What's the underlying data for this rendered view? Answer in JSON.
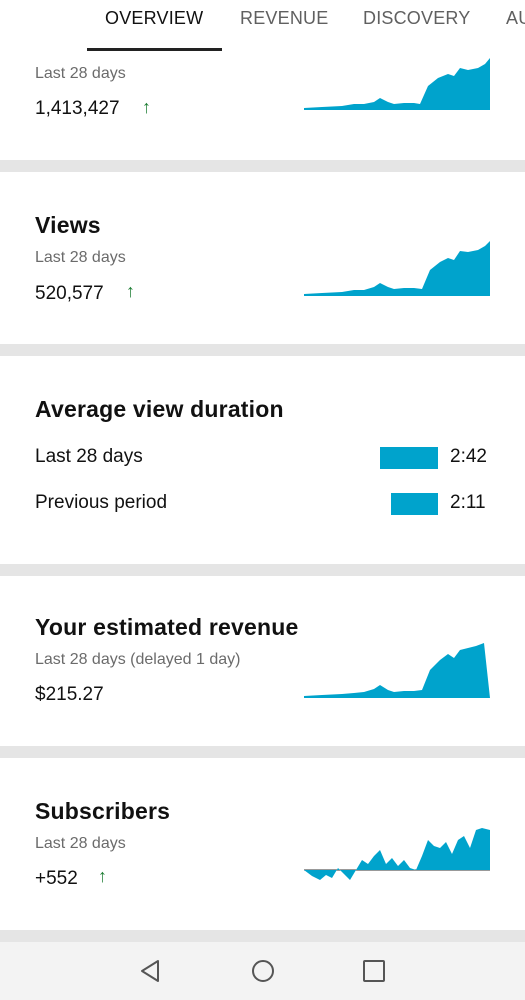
{
  "tabs": [
    {
      "label": "OVERVIEW"
    },
    {
      "label": "REVENUE"
    },
    {
      "label": "DISCOVERY"
    },
    {
      "label": "AU"
    }
  ],
  "watch_time_card": {
    "subtitle": "Last 28 days",
    "value": "1,413,427",
    "trend": "up"
  },
  "views_card": {
    "title": "Views",
    "subtitle": "Last 28 days",
    "value": "520,577",
    "trend": "up"
  },
  "avg_view_duration_card": {
    "title": "Average view duration",
    "rows": [
      {
        "label": "Last 28 days",
        "value": "2:42"
      },
      {
        "label": "Previous period",
        "value": "2:11"
      }
    ]
  },
  "revenue_card": {
    "title": "Your estimated revenue",
    "subtitle": "Last 28 days (delayed 1 day)",
    "value": "$215.27"
  },
  "subscribers_card": {
    "title": "Subscribers",
    "subtitle": "Last 28 days",
    "value": "+552",
    "trend": "up"
  },
  "colors": {
    "chart_fill": "#00a3cc",
    "trend_up": "#1e7e34",
    "separator": "#e5e5e5"
  },
  "nav": {
    "back": "back-icon",
    "home": "home-icon",
    "recents": "recents-icon"
  }
}
